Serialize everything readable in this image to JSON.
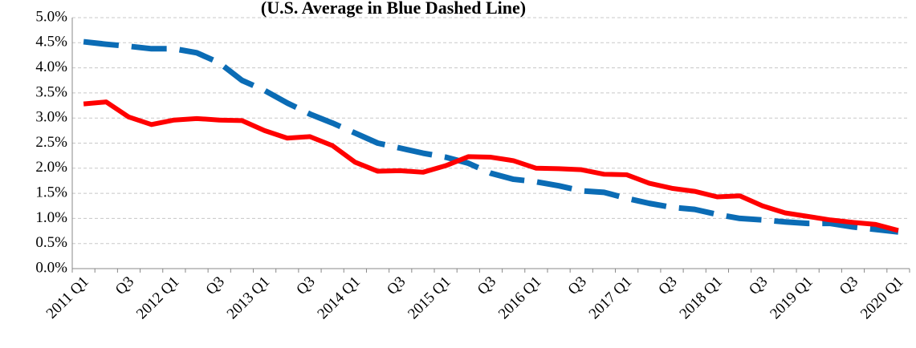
{
  "chart_data": {
    "type": "line",
    "subtitle": "(U.S. Average in Blue Dashed Line)",
    "categories": [
      "2011 Q1",
      null,
      "Q3",
      null,
      "2012 Q1",
      null,
      "Q3",
      null,
      "2013 Q1",
      null,
      "Q3",
      null,
      "2014 Q1",
      null,
      "Q3",
      null,
      "2015 Q1",
      null,
      "Q3",
      null,
      "2016 Q1",
      null,
      "Q3",
      null,
      "2017 Q1",
      null,
      "Q3",
      null,
      "2018 Q1",
      null,
      "Q3",
      null,
      "2019 Q1",
      null,
      "Q3",
      null,
      "2020 Q1"
    ],
    "series": [
      {
        "color": "#ff0000",
        "dashed": false,
        "values": [
          3.28,
          3.32,
          3.02,
          2.87,
          2.96,
          2.99,
          2.96,
          2.95,
          2.75,
          2.6,
          2.63,
          2.45,
          2.12,
          1.94,
          1.95,
          1.92,
          2.05,
          2.23,
          2.22,
          2.15,
          2.0,
          1.99,
          1.97,
          1.88,
          1.87,
          1.7,
          1.6,
          1.54,
          1.43,
          1.45,
          1.25,
          1.11,
          1.04,
          0.97,
          0.92,
          0.88,
          0.76
        ]
      },
      {
        "color": "#0b6cb5",
        "dashed": true,
        "values": [
          4.52,
          4.47,
          4.43,
          4.38,
          4.38,
          4.3,
          4.1,
          3.75,
          3.55,
          3.3,
          3.08,
          2.9,
          2.7,
          2.5,
          2.4,
          2.3,
          2.22,
          2.1,
          1.9,
          1.78,
          1.73,
          1.65,
          1.55,
          1.52,
          1.4,
          1.3,
          1.22,
          1.18,
          1.08,
          1.0,
          0.97,
          0.93,
          0.9,
          0.9,
          0.83,
          0.78,
          0.73
        ]
      }
    ],
    "ylim": [
      0,
      5
    ],
    "yticks": [
      {
        "value": 0,
        "label": "0.0%"
      },
      {
        "value": 0.5,
        "label": "0.5%"
      },
      {
        "value": 1,
        "label": "1.0%"
      },
      {
        "value": 1.5,
        "label": "1.5%"
      },
      {
        "value": 2,
        "label": "2.0%"
      },
      {
        "value": 2.5,
        "label": "2.5%"
      },
      {
        "value": 3,
        "label": "3.0%"
      },
      {
        "value": 3.5,
        "label": "3.5%"
      },
      {
        "value": 4,
        "label": "4.0%"
      },
      {
        "value": 4.5,
        "label": "4.5%"
      },
      {
        "value": 5,
        "label": "5.0%"
      }
    ],
    "grid": true
  }
}
